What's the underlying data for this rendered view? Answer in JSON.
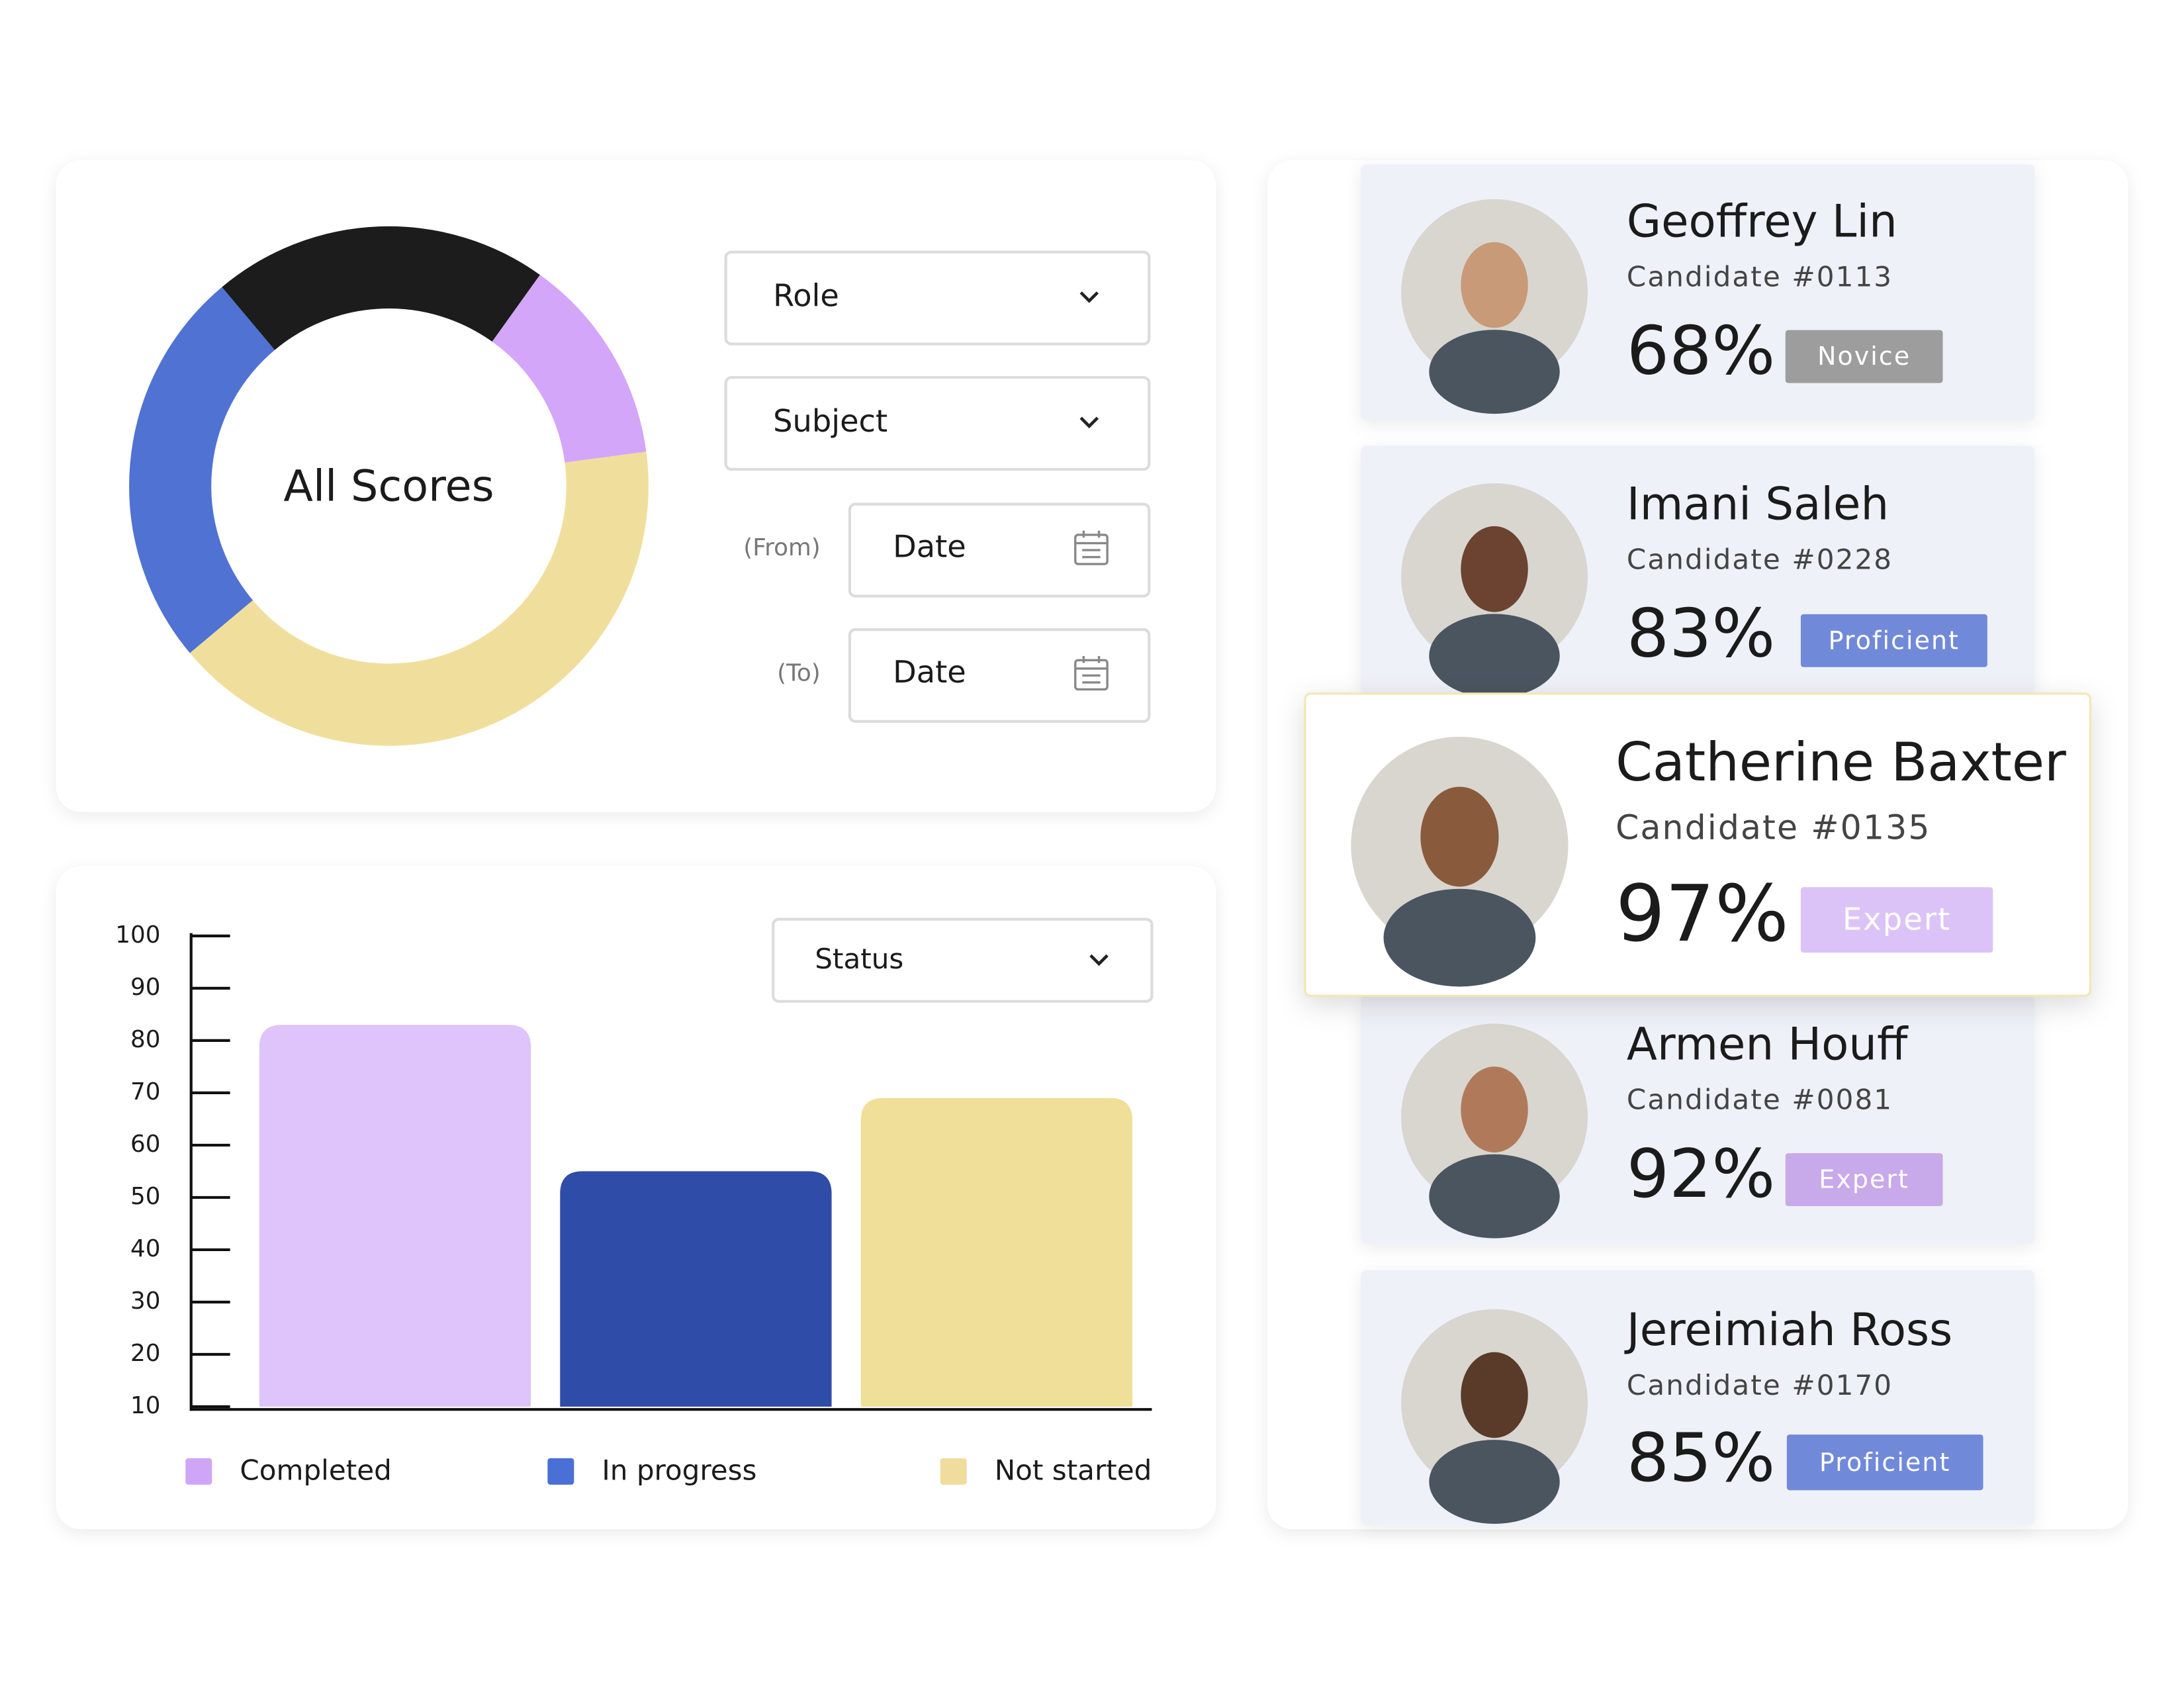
{
  "filters": {
    "role": "Role",
    "subject": "Subject",
    "from_label": "(From)",
    "from": "Date",
    "to_label": "(To)",
    "to": "Date",
    "status": "Status"
  },
  "chart_data": [
    {
      "type": "pie",
      "title": "All Scores",
      "categories": [
        null,
        null,
        null,
        null
      ],
      "values": [
        21,
        13,
        41,
        25
      ],
      "colors": [
        "#1c1c1c",
        "#d3a6fa",
        "#f0df9c",
        "#4f72d3"
      ]
    },
    {
      "type": "bar",
      "categories": [
        "Completed",
        "In progress",
        "Not started"
      ],
      "values": [
        83,
        55,
        69
      ],
      "colors": [
        "#dfc3fb",
        "#2f4ca8",
        "#efdf98"
      ],
      "legend_colors": [
        "#cfa6f7",
        "#4a6fd6",
        "#f0dc9c"
      ],
      "ylim": [
        10,
        100
      ],
      "yticks": [
        10,
        20,
        30,
        40,
        50,
        60,
        70,
        80,
        90,
        100
      ]
    }
  ],
  "candidates": [
    {
      "name": "Geoffrey Lin",
      "id": "Candidate #0113",
      "score": "68%",
      "level": "Novice",
      "badge_color": "#9d9d9d"
    },
    {
      "name": "Imani Saleh",
      "id": "Candidate #0228",
      "score": "83%",
      "level": "Proficient",
      "badge_color": "#7189d9"
    },
    {
      "name": "Catherine Baxter",
      "id": "Candidate #0135",
      "score": "97%",
      "level": "Expert",
      "badge_color": "#dcc3f7"
    },
    {
      "name": "Armen Houff",
      "id": "Candidate #0081",
      "score": "92%",
      "level": "Expert",
      "badge_color": "#c8a9ea"
    },
    {
      "name": "Jereimiah Ross",
      "id": "Candidate #0170",
      "score": "85%",
      "level": "Proficient",
      "badge_color": "#7189d9"
    }
  ]
}
